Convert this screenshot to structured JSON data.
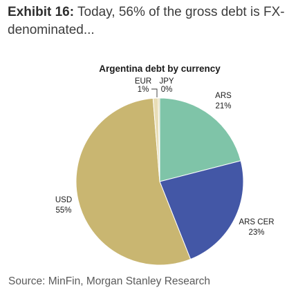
{
  "exhibit": {
    "label": "Exhibit 16:",
    "text": "Today, 56% of the gross debt is FX-denominated..."
  },
  "source": "Source: MinFin, Morgan Stanley Research",
  "chart_data": {
    "type": "pie",
    "title": "Argentina debt by currency",
    "slices": [
      {
        "label": "ARS",
        "value": 21,
        "value_label": "21%",
        "color": "#7fc4a8"
      },
      {
        "label": "ARS CER",
        "value": 23,
        "value_label": "23%",
        "color": "#4357a6"
      },
      {
        "label": "USD",
        "value": 55,
        "value_label": "55%",
        "color": "#c9b671"
      },
      {
        "label": "EUR",
        "value": 1,
        "value_label": "1%",
        "color": "#e8ddb6"
      },
      {
        "label": "JPY",
        "value": 0,
        "value_label": "0%",
        "color": "#d8cfa0"
      }
    ],
    "start_angle_deg": 0,
    "direction": "clockwise"
  }
}
